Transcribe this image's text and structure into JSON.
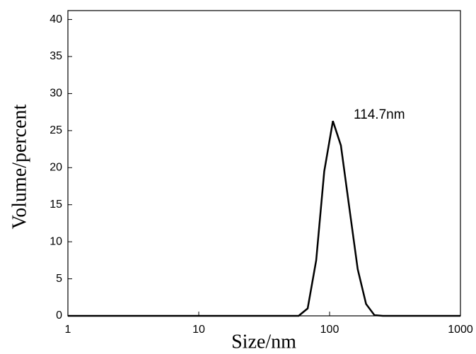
{
  "chart_data": {
    "type": "line",
    "x_label": "Size/nm",
    "y_label": "Volume/percent",
    "annotation": "114.7nm",
    "x": [
      1,
      58,
      68,
      79,
      91,
      106,
      122,
      142,
      164,
      190,
      220,
      255,
      1000
    ],
    "series": [
      {
        "color": "#000000",
        "values": [
          0,
          0,
          1,
          7.5,
          19.5,
          26.3,
          23,
          14.4,
          6.3,
          1.6,
          0.1,
          0,
          0
        ]
      }
    ],
    "xscale": "log",
    "xlim": [
      1,
      1000
    ],
    "xticks": [
      1,
      10,
      100,
      1000
    ],
    "ylim": [
      0,
      41.2
    ],
    "yticks": [
      0,
      5,
      10,
      15,
      20,
      25,
      30,
      35,
      40
    ],
    "grid": false
  }
}
